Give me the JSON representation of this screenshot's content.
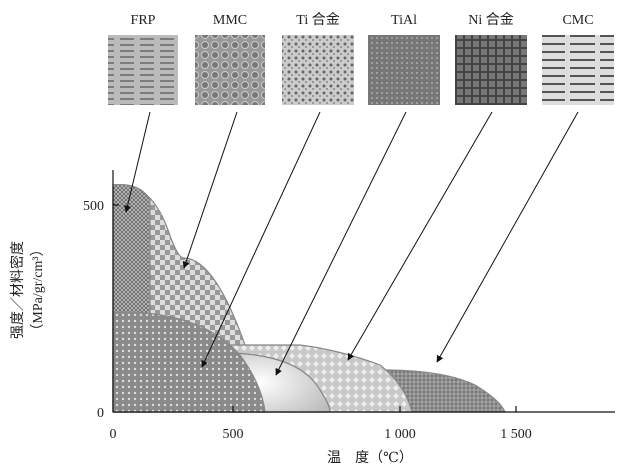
{
  "images": [
    {
      "label": "FRP"
    },
    {
      "label": "MMC"
    },
    {
      "label": "Ti 合金"
    },
    {
      "label": "TiAl"
    },
    {
      "label": "Ni 合金"
    },
    {
      "label": "CMC"
    }
  ],
  "axes": {
    "y_label": "强度／材料密度",
    "y_unit": "（MPa/gr/cm³）",
    "x_label": "温　度（℃）",
    "x_ticks": [
      "0",
      "500",
      "1 000",
      "1 500"
    ],
    "y_ticks": [
      "0",
      "500"
    ]
  }
}
